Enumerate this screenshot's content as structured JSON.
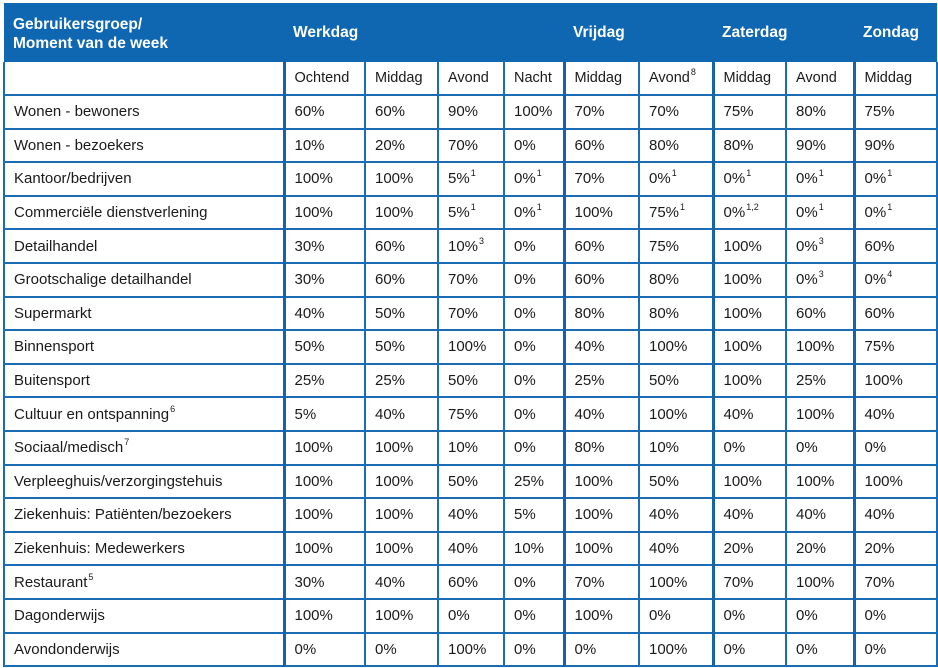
{
  "table": {
    "header": {
      "row_label_line1": "Gebruikersgroep/",
      "row_label_line2": "Moment van de week",
      "groups": [
        {
          "label": "Werkdag"
        },
        {
          "label": "Vrijdag"
        },
        {
          "label": "Zaterdag"
        },
        {
          "label": "Zondag"
        }
      ]
    },
    "subheader": [
      {
        "label": "Ochtend",
        "note": ""
      },
      {
        "label": "Middag",
        "note": ""
      },
      {
        "label": "Avond",
        "note": ""
      },
      {
        "label": "Nacht",
        "note": ""
      },
      {
        "label": "Middag",
        "note": ""
      },
      {
        "label": "Avond",
        "note": "8"
      },
      {
        "label": "Middag",
        "note": ""
      },
      {
        "label": "Avond",
        "note": ""
      },
      {
        "label": "Middag",
        "note": ""
      }
    ],
    "rows": [
      {
        "label": "Wonen - bewoners",
        "label_note": "",
        "cells": [
          {
            "v": "60%",
            "n": ""
          },
          {
            "v": "60%",
            "n": ""
          },
          {
            "v": "90%",
            "n": ""
          },
          {
            "v": "100%",
            "n": ""
          },
          {
            "v": "70%",
            "n": ""
          },
          {
            "v": "70%",
            "n": ""
          },
          {
            "v": "75%",
            "n": ""
          },
          {
            "v": "80%",
            "n": ""
          },
          {
            "v": "75%",
            "n": ""
          }
        ]
      },
      {
        "label": "Wonen - bezoekers",
        "label_note": "",
        "cells": [
          {
            "v": "10%",
            "n": ""
          },
          {
            "v": "20%",
            "n": ""
          },
          {
            "v": "70%",
            "n": ""
          },
          {
            "v": "0%",
            "n": ""
          },
          {
            "v": "60%",
            "n": ""
          },
          {
            "v": "80%",
            "n": ""
          },
          {
            "v": "80%",
            "n": ""
          },
          {
            "v": "90%",
            "n": ""
          },
          {
            "v": "90%",
            "n": ""
          }
        ]
      },
      {
        "label": "Kantoor/bedrijven",
        "label_note": "",
        "cells": [
          {
            "v": "100%",
            "n": ""
          },
          {
            "v": "100%",
            "n": ""
          },
          {
            "v": "5%",
            "n": "1"
          },
          {
            "v": "0%",
            "n": "1"
          },
          {
            "v": "70%",
            "n": ""
          },
          {
            "v": "0%",
            "n": "1"
          },
          {
            "v": "0%",
            "n": "1"
          },
          {
            "v": "0%",
            "n": "1"
          },
          {
            "v": "0%",
            "n": "1"
          }
        ]
      },
      {
        "label": "Commerciële dienstverlening",
        "label_note": "",
        "cells": [
          {
            "v": "100%",
            "n": ""
          },
          {
            "v": "100%",
            "n": ""
          },
          {
            "v": "5%",
            "n": "1"
          },
          {
            "v": "0%",
            "n": "1"
          },
          {
            "v": "100%",
            "n": ""
          },
          {
            "v": "75%",
            "n": "1"
          },
          {
            "v": "0%",
            "n": "1,2"
          },
          {
            "v": "0%",
            "n": "1"
          },
          {
            "v": "0%",
            "n": "1"
          }
        ]
      },
      {
        "label": "Detailhandel",
        "label_note": "",
        "cells": [
          {
            "v": "30%",
            "n": ""
          },
          {
            "v": "60%",
            "n": ""
          },
          {
            "v": "10%",
            "n": "3"
          },
          {
            "v": "0%",
            "n": ""
          },
          {
            "v": "60%",
            "n": ""
          },
          {
            "v": "75%",
            "n": ""
          },
          {
            "v": "100%",
            "n": ""
          },
          {
            "v": "0%",
            "n": "3"
          },
          {
            "v": "60%",
            "n": ""
          }
        ]
      },
      {
        "label": "Grootschalige detailhandel",
        "label_note": "",
        "cells": [
          {
            "v": "30%",
            "n": ""
          },
          {
            "v": "60%",
            "n": ""
          },
          {
            "v": "70%",
            "n": ""
          },
          {
            "v": "0%",
            "n": ""
          },
          {
            "v": "60%",
            "n": ""
          },
          {
            "v": "80%",
            "n": ""
          },
          {
            "v": "100%",
            "n": ""
          },
          {
            "v": "0%",
            "n": "3"
          },
          {
            "v": "0%",
            "n": "4"
          }
        ]
      },
      {
        "label": "Supermarkt",
        "label_note": "",
        "cells": [
          {
            "v": "40%",
            "n": ""
          },
          {
            "v": "50%",
            "n": ""
          },
          {
            "v": "70%",
            "n": ""
          },
          {
            "v": "0%",
            "n": ""
          },
          {
            "v": "80%",
            "n": ""
          },
          {
            "v": "80%",
            "n": ""
          },
          {
            "v": "100%",
            "n": ""
          },
          {
            "v": "60%",
            "n": ""
          },
          {
            "v": "60%",
            "n": ""
          }
        ]
      },
      {
        "label": "Binnensport",
        "label_note": "",
        "cells": [
          {
            "v": "50%",
            "n": ""
          },
          {
            "v": "50%",
            "n": ""
          },
          {
            "v": "100%",
            "n": ""
          },
          {
            "v": "0%",
            "n": ""
          },
          {
            "v": "40%",
            "n": ""
          },
          {
            "v": "100%",
            "n": ""
          },
          {
            "v": "100%",
            "n": ""
          },
          {
            "v": "100%",
            "n": ""
          },
          {
            "v": "75%",
            "n": ""
          }
        ]
      },
      {
        "label": "Buitensport",
        "label_note": "",
        "cells": [
          {
            "v": "25%",
            "n": ""
          },
          {
            "v": "25%",
            "n": ""
          },
          {
            "v": "50%",
            "n": ""
          },
          {
            "v": "0%",
            "n": ""
          },
          {
            "v": "25%",
            "n": ""
          },
          {
            "v": "50%",
            "n": ""
          },
          {
            "v": "100%",
            "n": ""
          },
          {
            "v": "25%",
            "n": ""
          },
          {
            "v": "100%",
            "n": ""
          }
        ]
      },
      {
        "label": "Cultuur en ontspanning",
        "label_note": "6",
        "cells": [
          {
            "v": "5%",
            "n": ""
          },
          {
            "v": "40%",
            "n": ""
          },
          {
            "v": "75%",
            "n": ""
          },
          {
            "v": "0%",
            "n": ""
          },
          {
            "v": "40%",
            "n": ""
          },
          {
            "v": "100%",
            "n": ""
          },
          {
            "v": "40%",
            "n": ""
          },
          {
            "v": "100%",
            "n": ""
          },
          {
            "v": "40%",
            "n": ""
          }
        ]
      },
      {
        "label": "Sociaal/medisch",
        "label_note": "7",
        "cells": [
          {
            "v": "100%",
            "n": ""
          },
          {
            "v": "100%",
            "n": ""
          },
          {
            "v": "10%",
            "n": ""
          },
          {
            "v": "0%",
            "n": ""
          },
          {
            "v": "80%",
            "n": ""
          },
          {
            "v": "10%",
            "n": ""
          },
          {
            "v": "0%",
            "n": ""
          },
          {
            "v": "0%",
            "n": ""
          },
          {
            "v": "0%",
            "n": ""
          }
        ]
      },
      {
        "label": "Verpleeghuis/verzorgingstehuis",
        "label_note": "",
        "cells": [
          {
            "v": "100%",
            "n": ""
          },
          {
            "v": "100%",
            "n": ""
          },
          {
            "v": "50%",
            "n": ""
          },
          {
            "v": "25%",
            "n": ""
          },
          {
            "v": "100%",
            "n": ""
          },
          {
            "v": "50%",
            "n": ""
          },
          {
            "v": "100%",
            "n": ""
          },
          {
            "v": "100%",
            "n": ""
          },
          {
            "v": "100%",
            "n": ""
          }
        ]
      },
      {
        "label": "Ziekenhuis: Patiënten/bezoekers",
        "label_note": "",
        "cells": [
          {
            "v": "100%",
            "n": ""
          },
          {
            "v": "100%",
            "n": ""
          },
          {
            "v": "40%",
            "n": ""
          },
          {
            "v": "5%",
            "n": ""
          },
          {
            "v": "100%",
            "n": ""
          },
          {
            "v": "40%",
            "n": ""
          },
          {
            "v": "40%",
            "n": ""
          },
          {
            "v": "40%",
            "n": ""
          },
          {
            "v": "40%",
            "n": ""
          }
        ]
      },
      {
        "label": "Ziekenhuis: Medewerkers",
        "label_note": "",
        "cells": [
          {
            "v": "100%",
            "n": ""
          },
          {
            "v": "100%",
            "n": ""
          },
          {
            "v": "40%",
            "n": ""
          },
          {
            "v": "10%",
            "n": ""
          },
          {
            "v": "100%",
            "n": ""
          },
          {
            "v": "40%",
            "n": ""
          },
          {
            "v": "20%",
            "n": ""
          },
          {
            "v": "20%",
            "n": ""
          },
          {
            "v": "20%",
            "n": ""
          }
        ]
      },
      {
        "label": "Restaurant",
        "label_note": "5",
        "cells": [
          {
            "v": "30%",
            "n": ""
          },
          {
            "v": "40%",
            "n": ""
          },
          {
            "v": "60%",
            "n": ""
          },
          {
            "v": "0%",
            "n": ""
          },
          {
            "v": "70%",
            "n": ""
          },
          {
            "v": "100%",
            "n": ""
          },
          {
            "v": "70%",
            "n": ""
          },
          {
            "v": "100%",
            "n": ""
          },
          {
            "v": "70%",
            "n": ""
          }
        ]
      },
      {
        "label": "Dagonderwijs",
        "label_note": "",
        "cells": [
          {
            "v": "100%",
            "n": ""
          },
          {
            "v": "100%",
            "n": ""
          },
          {
            "v": "0%",
            "n": ""
          },
          {
            "v": "0%",
            "n": ""
          },
          {
            "v": "100%",
            "n": ""
          },
          {
            "v": "0%",
            "n": ""
          },
          {
            "v": "0%",
            "n": ""
          },
          {
            "v": "0%",
            "n": ""
          },
          {
            "v": "0%",
            "n": ""
          }
        ]
      },
      {
        "label": "Avondonderwijs",
        "label_note": "",
        "cells": [
          {
            "v": "0%",
            "n": ""
          },
          {
            "v": "0%",
            "n": ""
          },
          {
            "v": "100%",
            "n": ""
          },
          {
            "v": "0%",
            "n": ""
          },
          {
            "v": "0%",
            "n": ""
          },
          {
            "v": "100%",
            "n": ""
          },
          {
            "v": "0%",
            "n": ""
          },
          {
            "v": "0%",
            "n": ""
          },
          {
            "v": "0%",
            "n": ""
          }
        ]
      }
    ]
  },
  "colors": {
    "header_bg": "#0f67b1",
    "header_text": "#ffffff",
    "border": "#1a6db5",
    "body_text": "#1a1a1a"
  }
}
